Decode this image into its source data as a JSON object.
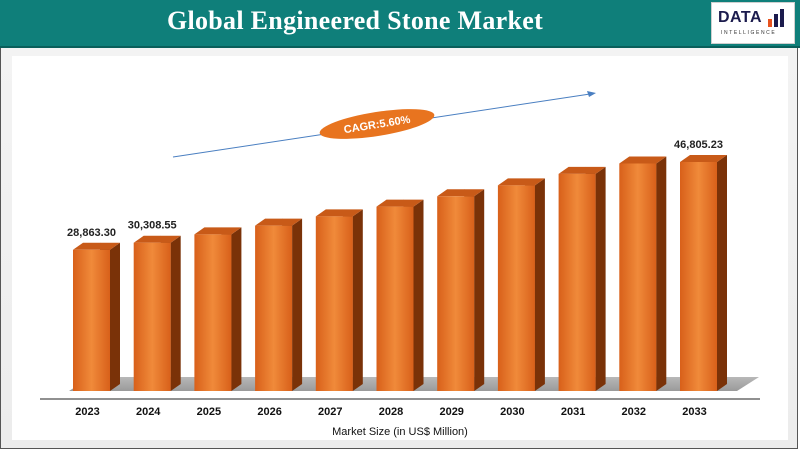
{
  "header": {
    "title": "Global Engineered Stone Market"
  },
  "logo": {
    "text": "DATA",
    "subtext": "INTELLIGENCE",
    "colors": [
      "#e8531f",
      "#1b1b4d",
      "#1b1b4d"
    ]
  },
  "colors": {
    "header_bg": "#0f7f7a",
    "bar_front": "#e06a1f",
    "bar_side": "#7a3208",
    "bar_top": "#c85a18",
    "cagr_bubble": "#e8741f",
    "arrow": "#4a7fc1"
  },
  "chart_data": {
    "type": "bar",
    "categories": [
      "2023",
      "2024",
      "2025",
      "2026",
      "2027",
      "2028",
      "2029",
      "2030",
      "2031",
      "2032",
      "2033"
    ],
    "values": [
      28863.3,
      30308.55,
      32006,
      33798,
      35691,
      37689,
      39800,
      42029,
      44382,
      46500,
      46805.23
    ],
    "data_labels": {
      "0": "28,863.30",
      "1": "30,308.55",
      "10": "46,805.23"
    },
    "xlabel": "Market Size (in US$ Million)",
    "ylabel": "",
    "annotation": "CAGR:5.60%",
    "grid": false,
    "legend": "none"
  }
}
